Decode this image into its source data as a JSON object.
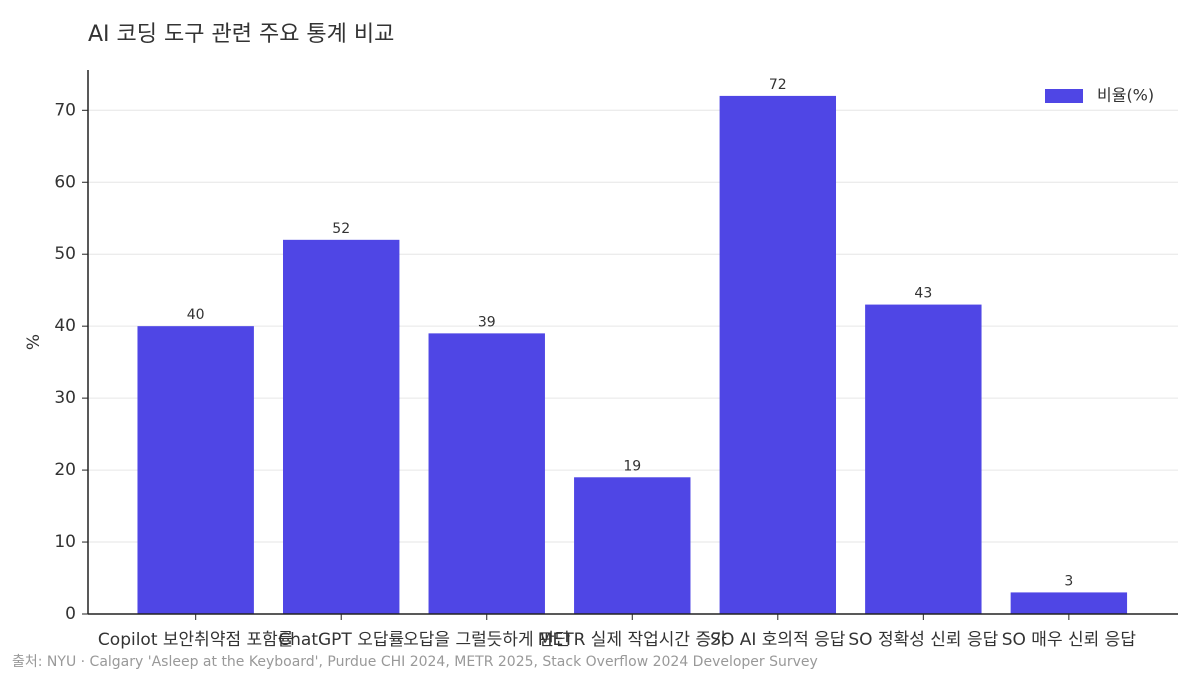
{
  "chart_data": {
    "type": "bar",
    "title": "AI 코딩 도구 관련 주요 통계 비교",
    "y_label": "%",
    "categories": [
      "Copilot 보안취약점 포함률",
      "ChatGPT 오답률",
      "오답을 그럴듯하게 판단",
      "METR 실제 작업시간 증가",
      "SO AI 호의적 응답",
      "SO 정확성 신뢰 응답",
      "SO 매우 신뢰 응답"
    ],
    "series": [
      {
        "name": "비율(%)",
        "color": "#4f46e5",
        "values": [
          40,
          52,
          39,
          19,
          72,
          43,
          3
        ]
      }
    ],
    "ylim": [
      0,
      75.6
    ],
    "yticks": [
      0,
      10,
      20,
      30,
      40,
      50,
      60,
      70
    ],
    "grid": true,
    "legend": "upper right",
    "source": "출처: NYU · Calgary 'Asleep at the Keyboard', Purdue CHI 2024, METR 2025, Stack Overflow 2024 Developer Survey"
  }
}
